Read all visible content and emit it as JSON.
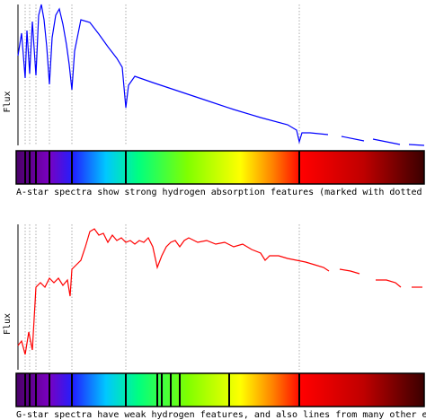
{
  "chart_data": [
    {
      "type": "line",
      "ylabel": "Flux",
      "caption": "A-star spectra show strong hydrogen absorption features (marked with dotted lines).",
      "color": "#0000ff",
      "xlim": [
        0,
        452
      ],
      "ylim": [
        0,
        157
      ],
      "x": [
        0,
        4,
        8,
        10,
        13,
        16,
        20,
        23,
        26,
        29,
        32,
        35,
        38,
        42,
        46,
        50,
        54,
        57,
        60,
        63,
        70,
        80,
        90,
        100,
        110,
        116,
        120,
        123,
        130,
        150,
        180,
        210,
        240,
        270,
        300,
        310,
        313,
        316,
        325,
        345,
        null,
        360,
        385,
        null,
        395,
        425,
        null,
        435,
        452
      ],
      "values": [
        100,
        125,
        75,
        128,
        80,
        138,
        78,
        145,
        157,
        140,
        110,
        68,
        120,
        145,
        152,
        135,
        112,
        90,
        62,
        105,
        140,
        137,
        124,
        110,
        97,
        87,
        42,
        67,
        77,
        70,
        60,
        50,
        40,
        31,
        23,
        17,
        4,
        14,
        14,
        12,
        null,
        10,
        5,
        null,
        7,
        1,
        null,
        1,
        0
      ],
      "lines": [
        8,
        13,
        20,
        35,
        60,
        120,
        313
      ],
      "bar_lines": [
        8,
        13,
        20,
        35,
        60,
        120,
        313
      ]
    },
    {
      "type": "line",
      "ylabel": "Flux",
      "caption": "G-star spectra have weak hydrogen features, and also lines from many other elements.",
      "color": "#ff0000",
      "xlim": [
        0,
        452
      ],
      "ylim": [
        0,
        162
      ],
      "x": [
        0,
        4,
        8,
        12,
        16,
        20,
        25,
        30,
        35,
        40,
        45,
        50,
        55,
        58,
        60,
        65,
        70,
        75,
        80,
        85,
        90,
        95,
        100,
        105,
        110,
        115,
        120,
        125,
        130,
        135,
        140,
        145,
        150,
        155,
        160,
        165,
        170,
        175,
        180,
        185,
        190,
        200,
        210,
        220,
        230,
        240,
        250,
        260,
        270,
        275,
        280,
        290,
        300,
        310,
        320,
        330,
        340,
        346,
        null,
        358,
        370,
        380,
        null,
        398,
        410,
        420,
        426,
        null,
        438,
        450
      ],
      "values": [
        27,
        32,
        17,
        42,
        22,
        92,
        97,
        92,
        102,
        97,
        102,
        94,
        100,
        82,
        112,
        117,
        122,
        137,
        154,
        157,
        150,
        152,
        142,
        150,
        144,
        147,
        142,
        144,
        140,
        144,
        142,
        147,
        137,
        114,
        127,
        137,
        142,
        144,
        137,
        144,
        147,
        142,
        144,
        140,
        142,
        137,
        140,
        134,
        130,
        122,
        127,
        127,
        124,
        122,
        120,
        117,
        114,
        110,
        null,
        112,
        110,
        107,
        null,
        100,
        100,
        97,
        92,
        null,
        92,
        92
      ],
      "lines": [
        8,
        13,
        20,
        35,
        60,
        120,
        313
      ],
      "bar_lines": [
        8,
        13,
        20,
        35,
        60,
        120,
        155,
        160,
        170,
        180,
        235,
        313
      ]
    }
  ]
}
